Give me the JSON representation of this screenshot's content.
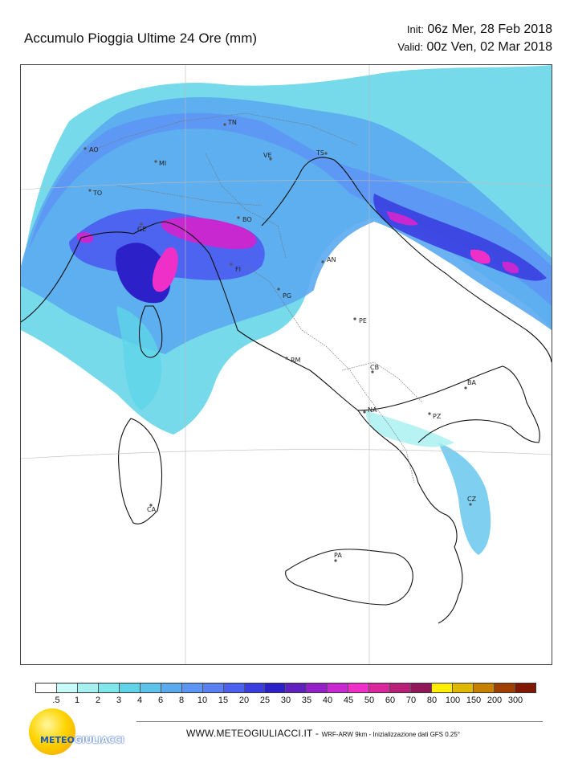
{
  "title": "Accumulo Pioggia Ultime 24 Ore   (mm)",
  "init": {
    "label": "Init:",
    "value": "06z Mer, 28 Feb 2018"
  },
  "valid": {
    "label": "Valid:",
    "value": "00z Ven, 02 Mar 2018"
  },
  "cities": [
    {
      "name": "AO"
    },
    {
      "name": "TO"
    },
    {
      "name": "MI"
    },
    {
      "name": "TN"
    },
    {
      "name": "VE"
    },
    {
      "name": "TS"
    },
    {
      "name": "GE"
    },
    {
      "name": "BO"
    },
    {
      "name": "FI"
    },
    {
      "name": "AN"
    },
    {
      "name": "PG"
    },
    {
      "name": "PE"
    },
    {
      "name": "RM"
    },
    {
      "name": "CB"
    },
    {
      "name": "NA"
    },
    {
      "name": "BA"
    },
    {
      "name": "PZ"
    },
    {
      "name": "CZ"
    },
    {
      "name": "CA"
    },
    {
      "name": "PA"
    }
  ],
  "legend": {
    "labels": [
      ".5",
      "1",
      "2",
      "3",
      "4",
      "6",
      "8",
      "10",
      "15",
      "20",
      "25",
      "30",
      "35",
      "40",
      "45",
      "50",
      "60",
      "70",
      "80",
      "100",
      "150",
      "200",
      "300"
    ],
    "colors": [
      "#ffffff",
      "#c8fafa",
      "#a6f0f0",
      "#7fe6ea",
      "#5fd4e8",
      "#5ec3ec",
      "#5aaaf0",
      "#5c96f4",
      "#5a7ff0",
      "#4b60ee",
      "#3a3ee0",
      "#2c20c8",
      "#6020c0",
      "#9620c8",
      "#c828d0",
      "#ee30c8",
      "#d8289c",
      "#b82078",
      "#901858",
      "#ffee00",
      "#e0b800",
      "#c88000",
      "#a04000",
      "#801800"
    ]
  },
  "logo": {
    "part1": "METEO",
    "part2": "GIULIACCI"
  },
  "footer": {
    "site": "WWW.METEOGIULIACCI.IT - ",
    "info": "WRF-ARW 9km - Inizializzazione dati GFS 0.25°"
  }
}
